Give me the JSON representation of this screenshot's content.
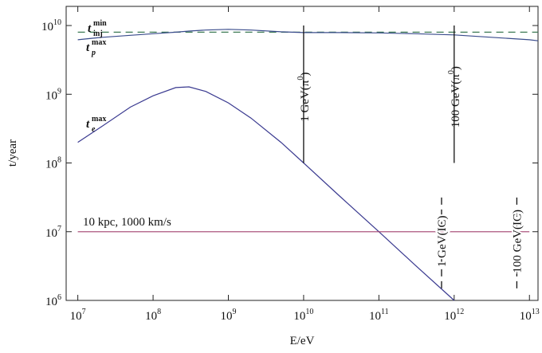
{
  "chart_data": {
    "type": "line",
    "xlabel": "E/eV",
    "ylabel": "t/year",
    "log_x": true,
    "log_y": true,
    "xlim": [
      7000000,
      13000000000000
    ],
    "ylim": [
      1000000,
      19000000000
    ],
    "xticks": [
      {
        "value": 10000000,
        "label": "10^{7}"
      },
      {
        "value": 100000000,
        "label": "10^{8}"
      },
      {
        "value": 1000000000,
        "label": "10^{9}"
      },
      {
        "value": 10000000000,
        "label": "10^{10}"
      },
      {
        "value": 100000000000,
        "label": "10^{11}"
      },
      {
        "value": 1000000000000,
        "label": "10^{12}"
      },
      {
        "value": 10000000000000,
        "label": "10^{13}"
      }
    ],
    "yticks": [
      {
        "value": 1000000,
        "label": "10^{6}"
      },
      {
        "value": 10000000,
        "label": "10^{7}"
      },
      {
        "value": 100000000,
        "label": "10^{8}"
      },
      {
        "value": 1000000000,
        "label": "10^{9}"
      },
      {
        "value": 10000000000,
        "label": "10^{10}"
      }
    ],
    "series": [
      {
        "label": {
          "base": "t",
          "sup": "min",
          "sub": "inj"
        },
        "color": "#3d7a55",
        "dashed": true,
        "x": [
          10000000,
          13000000000000
        ],
        "values": [
          8000000000,
          8000000000
        ]
      },
      {
        "label": {
          "base": "t",
          "sup": "max",
          "sub": "p"
        },
        "color": "#3a4c8c",
        "dashed": false,
        "x": [
          10000000,
          20000000,
          50000000,
          100000000,
          200000000,
          300000000,
          500000000,
          1000000000,
          2000000000,
          5000000000,
          10000000000,
          30000000000,
          100000000000,
          300000000000,
          1000000000000,
          10000000000000,
          13000000000000
        ],
        "values": [
          6200000000,
          6700000000,
          7200000000,
          7600000000,
          8000000000,
          8300000000,
          8600000000,
          8800000000,
          8600000000,
          8100000000,
          7900000000,
          7900000000,
          7800000000,
          7600000000,
          7300000000,
          6200000000,
          6000000000
        ]
      },
      {
        "label": {
          "base": "t",
          "sup": "max",
          "sub": "e"
        },
        "color": "#3a3a90",
        "dashed": false,
        "x": [
          10000000,
          20000000,
          50000000,
          100000000,
          200000000,
          300000000,
          500000000,
          1000000000,
          2000000000,
          5000000000,
          10000000000,
          30000000000,
          100000000000,
          300000000000,
          1000000000000
        ],
        "values": [
          200000000,
          330000000,
          650000000,
          950000000,
          1250000000,
          1280000000,
          1100000000,
          750000000,
          450000000,
          200000000,
          100000000,
          33000000,
          10000000,
          3300000,
          1000000
        ]
      },
      {
        "label": {
          "text": "10 kpc, 1000 km/s"
        },
        "color": "#a0406e",
        "dashed": false,
        "x": [
          10000000,
          10000000000000
        ],
        "values": [
          10000000,
          10000000
        ]
      }
    ],
    "markers": [
      {
        "label": "1 GeV(π^{0})",
        "x": 10000000000,
        "values": [
          100000000,
          10000000000
        ],
        "dashed": false
      },
      {
        "label": "100 GeV(π^{0})",
        "x": 1000000000000,
        "values": [
          100000000,
          10000000000
        ],
        "dashed": false
      },
      {
        "label": "1 GeV(IC)",
        "x": 680000000000,
        "values": [
          1500000,
          35000000
        ],
        "dashed": true
      },
      {
        "label": "100 GeV(IC)",
        "x": 6800000000000,
        "values": [
          1500000,
          35000000
        ],
        "dashed": true
      }
    ]
  }
}
